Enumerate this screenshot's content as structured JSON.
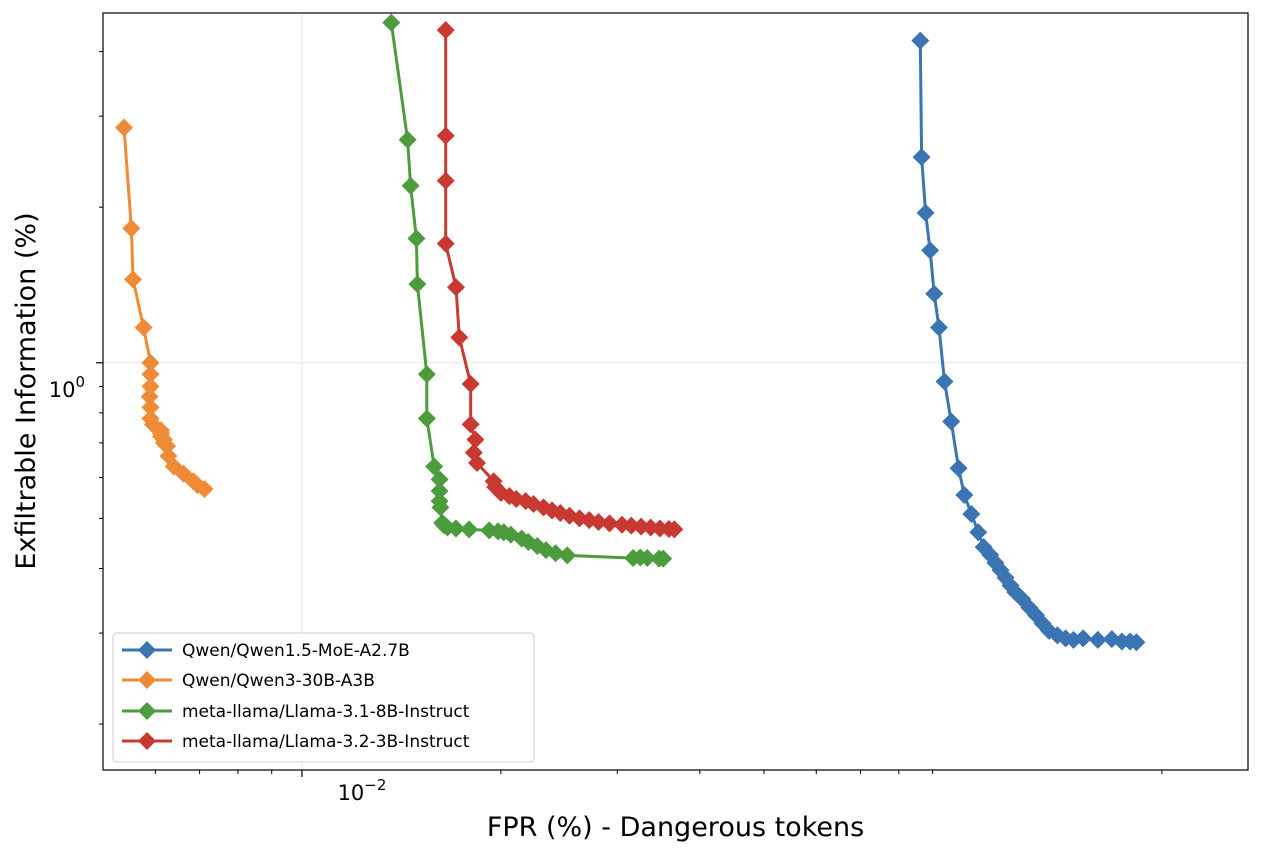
{
  "chart_data": {
    "type": "line",
    "title": "",
    "xlabel": "FPR (%) - Dangerous tokens",
    "ylabel": "Exfiltrable Information (%)",
    "xscale": "log",
    "yscale": "log",
    "xlim": [
      0.005,
      0.27
    ],
    "ylim": [
      0.163,
      4.75
    ],
    "grid": true,
    "legend_position": "lower-left",
    "x_tick_labels": [
      {
        "base": "10",
        "exp": "−2",
        "value": 0.01
      }
    ],
    "y_tick_labels": [
      {
        "base": "10",
        "exp": "0",
        "value": 1.0
      }
    ],
    "series": [
      {
        "name": "Qwen/Qwen1.5-MoE-A2.7B",
        "color": "#3b74b2",
        "marker": "diamond",
        "x": [
          0.0862,
          0.0866,
          0.0878,
          0.0892,
          0.0905,
          0.092,
          0.0938,
          0.096,
          0.0985,
          0.1005,
          0.103,
          0.1055,
          0.1075,
          0.11,
          0.112,
          0.114,
          0.116,
          0.118,
          0.12,
          0.123,
          0.126,
          0.129,
          0.132,
          0.135,
          0.139,
          0.143,
          0.147,
          0.152,
          0.16,
          0.168,
          0.174,
          0.179,
          0.183
        ],
        "y": [
          4.2,
          2.5,
          1.95,
          1.65,
          1.36,
          1.17,
          0.92,
          0.77,
          0.625,
          0.555,
          0.51,
          0.47,
          0.44,
          0.425,
          0.41,
          0.397,
          0.384,
          0.371,
          0.36,
          0.349,
          0.336,
          0.325,
          0.313,
          0.303,
          0.297,
          0.293,
          0.291,
          0.293,
          0.291,
          0.292,
          0.289,
          0.289,
          0.288
        ]
      },
      {
        "name": "Qwen/Qwen3-30B-A3B",
        "color": "#ef8a36",
        "marker": "diamond",
        "x": [
          0.00538,
          0.00552,
          0.00555,
          0.00576,
          0.0059,
          0.0059,
          0.0059,
          0.00588,
          0.0059,
          0.0059,
          0.00595,
          0.00612,
          0.00612,
          0.00612,
          0.00618,
          0.00618,
          0.00625,
          0.00628,
          0.0064,
          0.00662,
          0.00685,
          0.00695,
          0.00712
        ],
        "y": [
          2.85,
          1.82,
          1.45,
          1.17,
          1.0,
          0.95,
          0.9,
          0.86,
          0.82,
          0.78,
          0.76,
          0.74,
          0.73,
          0.72,
          0.71,
          0.7,
          0.69,
          0.66,
          0.63,
          0.61,
          0.59,
          0.58,
          0.57
        ]
      },
      {
        "name": "meta-llama/Llama-3.1-8B-Instruct",
        "color": "#4c9b3d",
        "marker": "diamond",
        "x": [
          0.01365,
          0.01445,
          0.0146,
          0.0149,
          0.01495,
          0.01545,
          0.01545,
          0.01585,
          0.01615,
          0.01615,
          0.01615,
          0.0162,
          0.0163,
          0.0164,
          0.0166,
          0.0171,
          0.0179,
          0.0192,
          0.0198,
          0.0202,
          0.0207,
          0.0215,
          0.022,
          0.0227,
          0.0234,
          0.0242,
          0.0252,
          0.0317,
          0.0325,
          0.0333,
          0.0347,
          0.0352
        ],
        "y": [
          4.55,
          2.7,
          2.2,
          1.74,
          1.42,
          0.95,
          0.78,
          0.63,
          0.595,
          0.565,
          0.54,
          0.525,
          0.49,
          0.485,
          0.48,
          0.478,
          0.476,
          0.474,
          0.472,
          0.47,
          0.465,
          0.457,
          0.45,
          0.442,
          0.434,
          0.428,
          0.424,
          0.419,
          0.42,
          0.419,
          0.418,
          0.418
        ]
      },
      {
        "name": "meta-llama/Llama-3.2-3B-Instruct",
        "color": "#c83a31",
        "marker": "diamond",
        "x": [
          0.0165,
          0.0165,
          0.0165,
          0.0165,
          0.0171,
          0.0173,
          0.018,
          0.018,
          0.0183,
          0.0182,
          0.0184,
          0.0195,
          0.0196,
          0.02,
          0.0206,
          0.0211,
          0.0218,
          0.0224,
          0.0232,
          0.0239,
          0.0246,
          0.0254,
          0.0263,
          0.0272,
          0.0281,
          0.0292,
          0.0305,
          0.0315,
          0.0326,
          0.0337,
          0.0348,
          0.0359,
          0.0366
        ],
        "y": [
          4.4,
          2.75,
          2.25,
          1.7,
          1.4,
          1.12,
          0.91,
          0.76,
          0.71,
          0.67,
          0.64,
          0.59,
          0.575,
          0.56,
          0.552,
          0.545,
          0.54,
          0.533,
          0.525,
          0.518,
          0.512,
          0.506,
          0.5,
          0.496,
          0.492,
          0.489,
          0.486,
          0.484,
          0.482,
          0.48,
          0.478,
          0.477,
          0.476
        ]
      }
    ]
  }
}
